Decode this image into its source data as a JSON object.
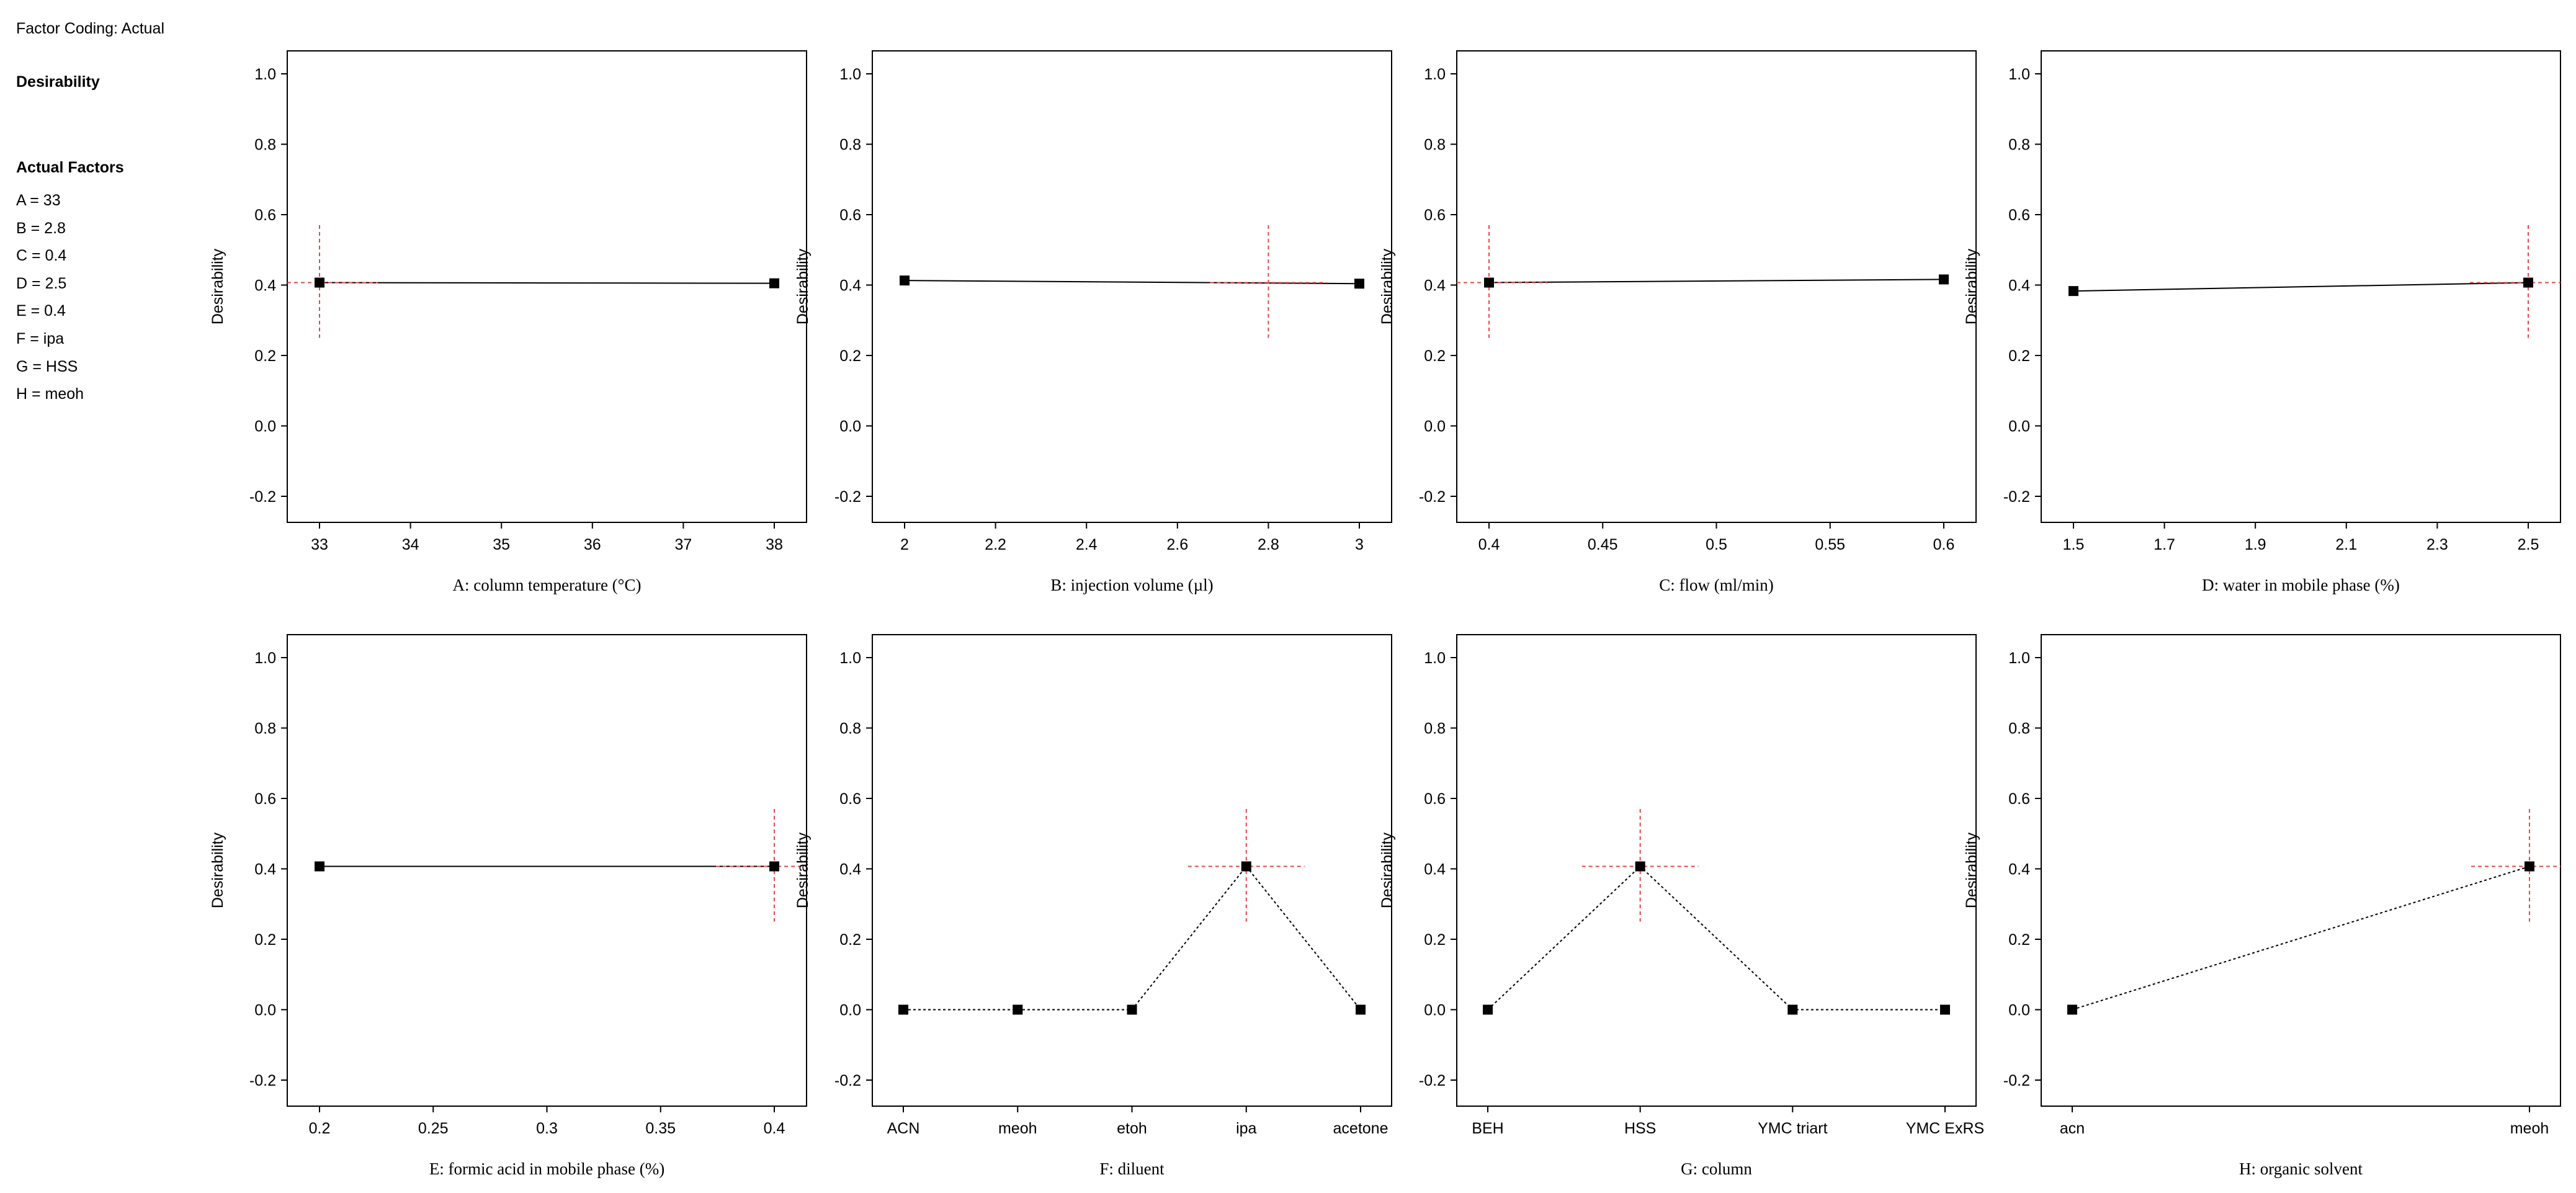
{
  "factor_coding": "Factor Coding: Actual",
  "response_name": "Desirability",
  "actual_factors_heading": "Actual Factors",
  "actual_factors": [
    "A = 33",
    "B = 2.8",
    "C = 0.4",
    "D = 2.5",
    "E = 0.4",
    "F = ipa",
    "G = HSS",
    "H = meoh"
  ],
  "colors": {
    "line": "#000000",
    "marker": "#000000",
    "crosshair": "#e8474a",
    "frame": "#000000"
  },
  "chart_data": [
    {
      "type": "line",
      "xlabel": "A: column temperature (°C)",
      "ylabel": "Desirability",
      "x_type": "numeric",
      "xlim": [
        33,
        38
      ],
      "xticks": [
        33,
        34,
        35,
        36,
        37,
        38
      ],
      "xticklabels": [
        "33",
        "34",
        "35",
        "36",
        "37",
        "38"
      ],
      "ylim": [
        -0.2,
        1.0
      ],
      "yticks": [
        -0.2,
        0.0,
        0.2,
        0.4,
        0.6,
        0.8,
        1.0
      ],
      "yticklabels": [
        "-0.2",
        "0.0",
        "0.2",
        "0.4",
        "0.6",
        "0.8",
        "1.0"
      ],
      "line_style": "solid",
      "points": [
        {
          "x": 33,
          "y": 0.407
        },
        {
          "x": 38,
          "y": 0.405
        }
      ],
      "current": {
        "x": 33,
        "y": 0.407,
        "y_low": 0.25,
        "y_high": 0.57
      }
    },
    {
      "type": "line",
      "xlabel": "B: injection volume (µl)",
      "ylabel": "Desirability",
      "x_type": "numeric",
      "xlim": [
        2,
        3
      ],
      "xticks": [
        2,
        2.2,
        2.4,
        2.6,
        2.8,
        3
      ],
      "xticklabels": [
        "2",
        "2.2",
        "2.4",
        "2.6",
        "2.8",
        "3"
      ],
      "ylim": [
        -0.2,
        1.0
      ],
      "yticks": [
        -0.2,
        0.0,
        0.2,
        0.4,
        0.6,
        0.8,
        1.0
      ],
      "yticklabels": [
        "-0.2",
        "0.0",
        "0.2",
        "0.4",
        "0.6",
        "0.8",
        "1.0"
      ],
      "line_style": "solid",
      "points": [
        {
          "x": 2,
          "y": 0.413
        },
        {
          "x": 3,
          "y": 0.404
        }
      ],
      "current": {
        "x": 2.8,
        "y": 0.407,
        "y_low": 0.25,
        "y_high": 0.57
      }
    },
    {
      "type": "line",
      "xlabel": "C: flow (ml/min)",
      "ylabel": "Desirability",
      "x_type": "numeric",
      "xlim": [
        0.4,
        0.6
      ],
      "xticks": [
        0.4,
        0.45,
        0.5,
        0.55,
        0.6
      ],
      "xticklabels": [
        "0.4",
        "0.45",
        "0.5",
        "0.55",
        "0.6"
      ],
      "ylim": [
        -0.2,
        1.0
      ],
      "yticks": [
        -0.2,
        0.0,
        0.2,
        0.4,
        0.6,
        0.8,
        1.0
      ],
      "yticklabels": [
        "-0.2",
        "0.0",
        "0.2",
        "0.4",
        "0.6",
        "0.8",
        "1.0"
      ],
      "line_style": "solid",
      "points": [
        {
          "x": 0.4,
          "y": 0.407
        },
        {
          "x": 0.6,
          "y": 0.416
        }
      ],
      "current": {
        "x": 0.4,
        "y": 0.407,
        "y_low": 0.25,
        "y_high": 0.57
      }
    },
    {
      "type": "line",
      "xlabel": "D: water in mobile phase (%)",
      "ylabel": "Desirability",
      "x_type": "numeric",
      "xlim": [
        1.5,
        2.5
      ],
      "xticks": [
        1.5,
        1.7,
        1.9,
        2.1,
        2.3,
        2.5
      ],
      "xticklabels": [
        "1.5",
        "1.7",
        "1.9",
        "2.1",
        "2.3",
        "2.5"
      ],
      "ylim": [
        -0.2,
        1.0
      ],
      "yticks": [
        -0.2,
        0.0,
        0.2,
        0.4,
        0.6,
        0.8,
        1.0
      ],
      "yticklabels": [
        "-0.2",
        "0.0",
        "0.2",
        "0.4",
        "0.6",
        "0.8",
        "1.0"
      ],
      "line_style": "solid",
      "points": [
        {
          "x": 1.5,
          "y": 0.383
        },
        {
          "x": 2.5,
          "y": 0.407
        }
      ],
      "current": {
        "x": 2.5,
        "y": 0.407,
        "y_low": 0.25,
        "y_high": 0.57
      }
    },
    {
      "type": "line",
      "xlabel": "E: formic acid in mobile phase (%)",
      "ylabel": "Desirability",
      "x_type": "numeric",
      "xlim": [
        0.2,
        0.4
      ],
      "xticks": [
        0.2,
        0.25,
        0.3,
        0.35,
        0.4
      ],
      "xticklabels": [
        "0.2",
        "0.25",
        "0.3",
        "0.35",
        "0.4"
      ],
      "ylim": [
        -0.2,
        1.0
      ],
      "yticks": [
        -0.2,
        0.0,
        0.2,
        0.4,
        0.6,
        0.8,
        1.0
      ],
      "yticklabels": [
        "-0.2",
        "0.0",
        "0.2",
        "0.4",
        "0.6",
        "0.8",
        "1.0"
      ],
      "line_style": "solid",
      "points": [
        {
          "x": 0.2,
          "y": 0.407
        },
        {
          "x": 0.4,
          "y": 0.407
        }
      ],
      "current": {
        "x": 0.4,
        "y": 0.407,
        "y_low": 0.25,
        "y_high": 0.57
      }
    },
    {
      "type": "line",
      "xlabel": "F: diluent",
      "ylabel": "Desirability",
      "x_type": "categorical",
      "categories": [
        "ACN",
        "meoh",
        "etoh",
        "ipa",
        "acetone"
      ],
      "ylim": [
        -0.2,
        1.0
      ],
      "yticks": [
        -0.2,
        0.0,
        0.2,
        0.4,
        0.6,
        0.8,
        1.0
      ],
      "yticklabels": [
        "-0.2",
        "0.0",
        "0.2",
        "0.4",
        "0.6",
        "0.8",
        "1.0"
      ],
      "line_style": "dotted",
      "values": [
        0.0,
        0.0,
        0.0,
        0.407,
        0.0
      ],
      "current": {
        "category": "ipa",
        "y": 0.407,
        "y_low": 0.25,
        "y_high": 0.57
      }
    },
    {
      "type": "line",
      "xlabel": "G: column",
      "ylabel": "Desirability",
      "x_type": "categorical",
      "categories": [
        "BEH",
        "HSS",
        "YMC triart",
        "YMC ExRS"
      ],
      "ylim": [
        -0.2,
        1.0
      ],
      "yticks": [
        -0.2,
        0.0,
        0.2,
        0.4,
        0.6,
        0.8,
        1.0
      ],
      "yticklabels": [
        "-0.2",
        "0.0",
        "0.2",
        "0.4",
        "0.6",
        "0.8",
        "1.0"
      ],
      "line_style": "dotted",
      "values": [
        0.0,
        0.407,
        0.0,
        0.0
      ],
      "current": {
        "category": "HSS",
        "y": 0.407,
        "y_low": 0.25,
        "y_high": 0.57
      }
    },
    {
      "type": "line",
      "xlabel": "H: organic solvent",
      "ylabel": "Desirability",
      "x_type": "categorical",
      "categories": [
        "acn",
        "meoh"
      ],
      "ylim": [
        -0.2,
        1.0
      ],
      "yticks": [
        -0.2,
        0.0,
        0.2,
        0.4,
        0.6,
        0.8,
        1.0
      ],
      "yticklabels": [
        "-0.2",
        "0.0",
        "0.2",
        "0.4",
        "0.6",
        "0.8",
        "1.0"
      ],
      "line_style": "dotted",
      "values": [
        0.0,
        0.407
      ],
      "current": {
        "category": "meoh",
        "y": 0.407,
        "y_low": 0.25,
        "y_high": 0.57
      }
    }
  ]
}
